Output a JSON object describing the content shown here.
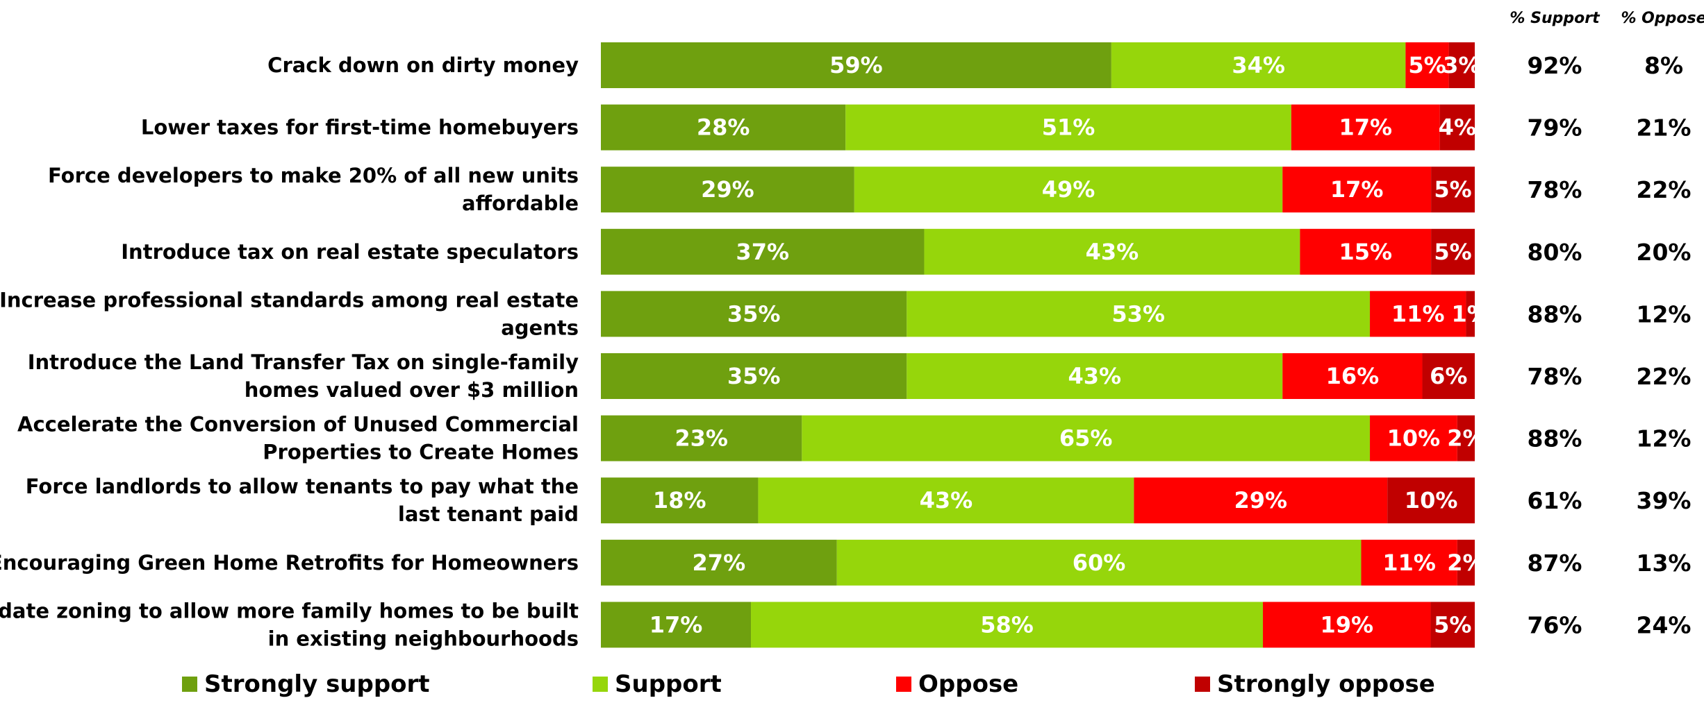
{
  "chart_data": {
    "type": "bar",
    "orientation": "horizontal",
    "stacked": true,
    "categories": [
      "Crack down on dirty money",
      "Lower taxes for first-time homebuyers",
      "Force developers to make 20% of all new units affordable",
      "Introduce tax on real estate speculators",
      "Increase professional standards among real estate agents",
      "Introduce the Land Transfer Tax on single-family homes valued over $3 million",
      "Accelerate the Conversion of Unused Commercial Properties to Create Homes",
      "Force landlords to allow tenants to pay what the last tenant paid",
      "Encouraging Green Home Retrofits for Homeowners",
      "Update zoning to allow more family homes to be built in existing neighbourhoods"
    ],
    "series": [
      {
        "name": "Strongly support",
        "color": "#6fa00f",
        "values": [
          59,
          28,
          29,
          37,
          35,
          35,
          23,
          18,
          27,
          17
        ],
        "labels": [
          "59%",
          "28%",
          "29%",
          "37%",
          "35%",
          "35%",
          "23%",
          "18%",
          "27%",
          "17%"
        ]
      },
      {
        "name": "Support",
        "color": "#96d60b",
        "values": [
          34,
          51,
          49,
          43,
          53,
          43,
          65,
          43,
          60,
          58
        ],
        "labels": [
          "34%",
          "51%",
          "49%",
          "43%",
          "53%",
          "43%",
          "65%",
          "43%",
          "60%",
          "58%"
        ]
      },
      {
        "name": "Oppose",
        "color": "#ff0000",
        "values": [
          5,
          17,
          17,
          15,
          11,
          16,
          10,
          29,
          11,
          19
        ],
        "labels": [
          "5%",
          "17%",
          "17%",
          "15%",
          "11%",
          "16%",
          "10%",
          "29%",
          "11%",
          "19%"
        ]
      },
      {
        "name": "Strongly oppose",
        "color": "#c00000",
        "values": [
          3,
          4,
          5,
          5,
          1,
          6,
          2,
          10,
          2,
          5
        ],
        "labels": [
          "3%",
          "4%",
          "5%",
          "5%",
          "1%",
          "6%",
          "2%",
          "10%",
          "2%",
          "5%"
        ]
      }
    ],
    "totals": {
      "support_header": "% Support",
      "oppose_header": "% Oppose",
      "support": [
        "92%",
        "79%",
        "78%",
        "80%",
        "88%",
        "78%",
        "88%",
        "61%",
        "87%",
        "76%"
      ],
      "oppose": [
        "8%",
        "21%",
        "22%",
        "20%",
        "12%",
        "22%",
        "12%",
        "39%",
        "13%",
        "24%"
      ]
    },
    "legend_position": "bottom",
    "grid": false,
    "xlim": [
      0,
      100
    ]
  }
}
